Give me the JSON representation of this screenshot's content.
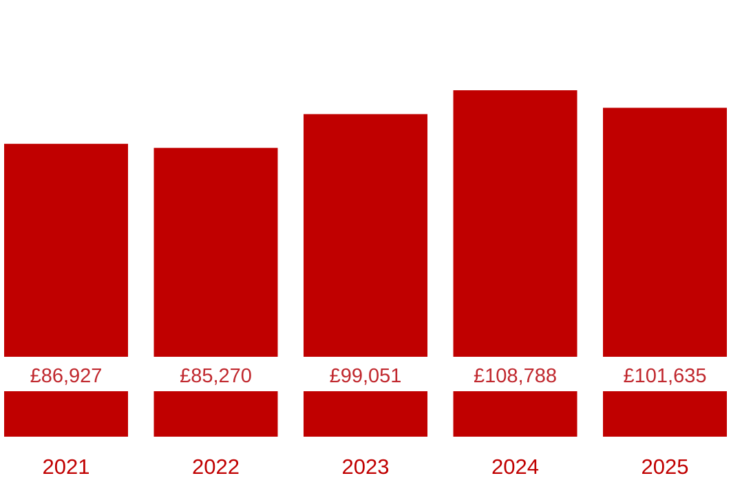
{
  "chart_data": {
    "type": "bar",
    "categories": [
      "2021",
      "2022",
      "2023",
      "2024",
      "2025"
    ],
    "values": [
      86927,
      85270,
      99051,
      108788,
      101635
    ],
    "value_labels": [
      "£86,927",
      "£85,270",
      "£99,051",
      "£108,788",
      "£101,635"
    ],
    "title": "",
    "xlabel": "",
    "ylabel": "",
    "grid": false,
    "legend": "none",
    "colors": {
      "bar": "#c00000",
      "value_label": "#c0272d",
      "category_label": "#c00000",
      "background": "#ffffff"
    }
  }
}
